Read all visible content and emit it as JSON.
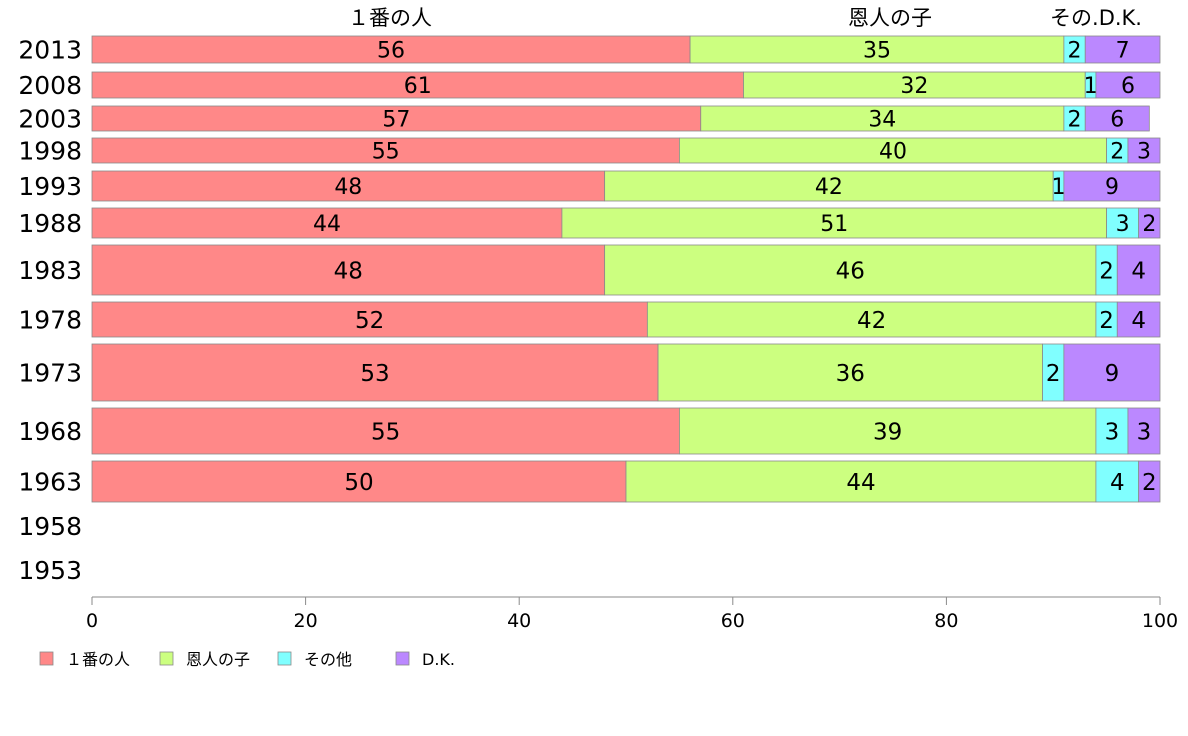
{
  "chart_data": {
    "type": "bar",
    "orientation": "horizontal",
    "stacked": true,
    "categories": [
      "2013",
      "2008",
      "2003",
      "1998",
      "1993",
      "1988",
      "1983",
      "1978",
      "1973",
      "1968",
      "1963",
      "1958",
      "1953"
    ],
    "series": [
      {
        "name": "１番の人",
        "color": "#ff8888",
        "values": [
          56,
          61,
          57,
          55,
          48,
          44,
          48,
          52,
          53,
          55,
          50,
          null,
          null
        ]
      },
      {
        "name": "恩人の子",
        "color": "#ccff80",
        "values": [
          35,
          32,
          34,
          40,
          42,
          51,
          46,
          42,
          36,
          39,
          44,
          null,
          null
        ]
      },
      {
        "name": "その他",
        "color": "#80ffff",
        "values": [
          2,
          1,
          2,
          2,
          1,
          3,
          2,
          2,
          2,
          3,
          4,
          null,
          null
        ]
      },
      {
        "name": "D.K.",
        "color": "#bb88ff",
        "values": [
          7,
          6,
          6,
          3,
          9,
          2,
          4,
          4,
          9,
          3,
          2,
          null,
          null
        ]
      }
    ],
    "top_labels": [
      "１番の人",
      "恩人の子",
      "その.D.K."
    ],
    "xlim": [
      0,
      100
    ],
    "xticks": [
      0,
      20,
      40,
      60,
      80,
      100
    ],
    "legend_position": "bottom-left",
    "grid": false
  }
}
